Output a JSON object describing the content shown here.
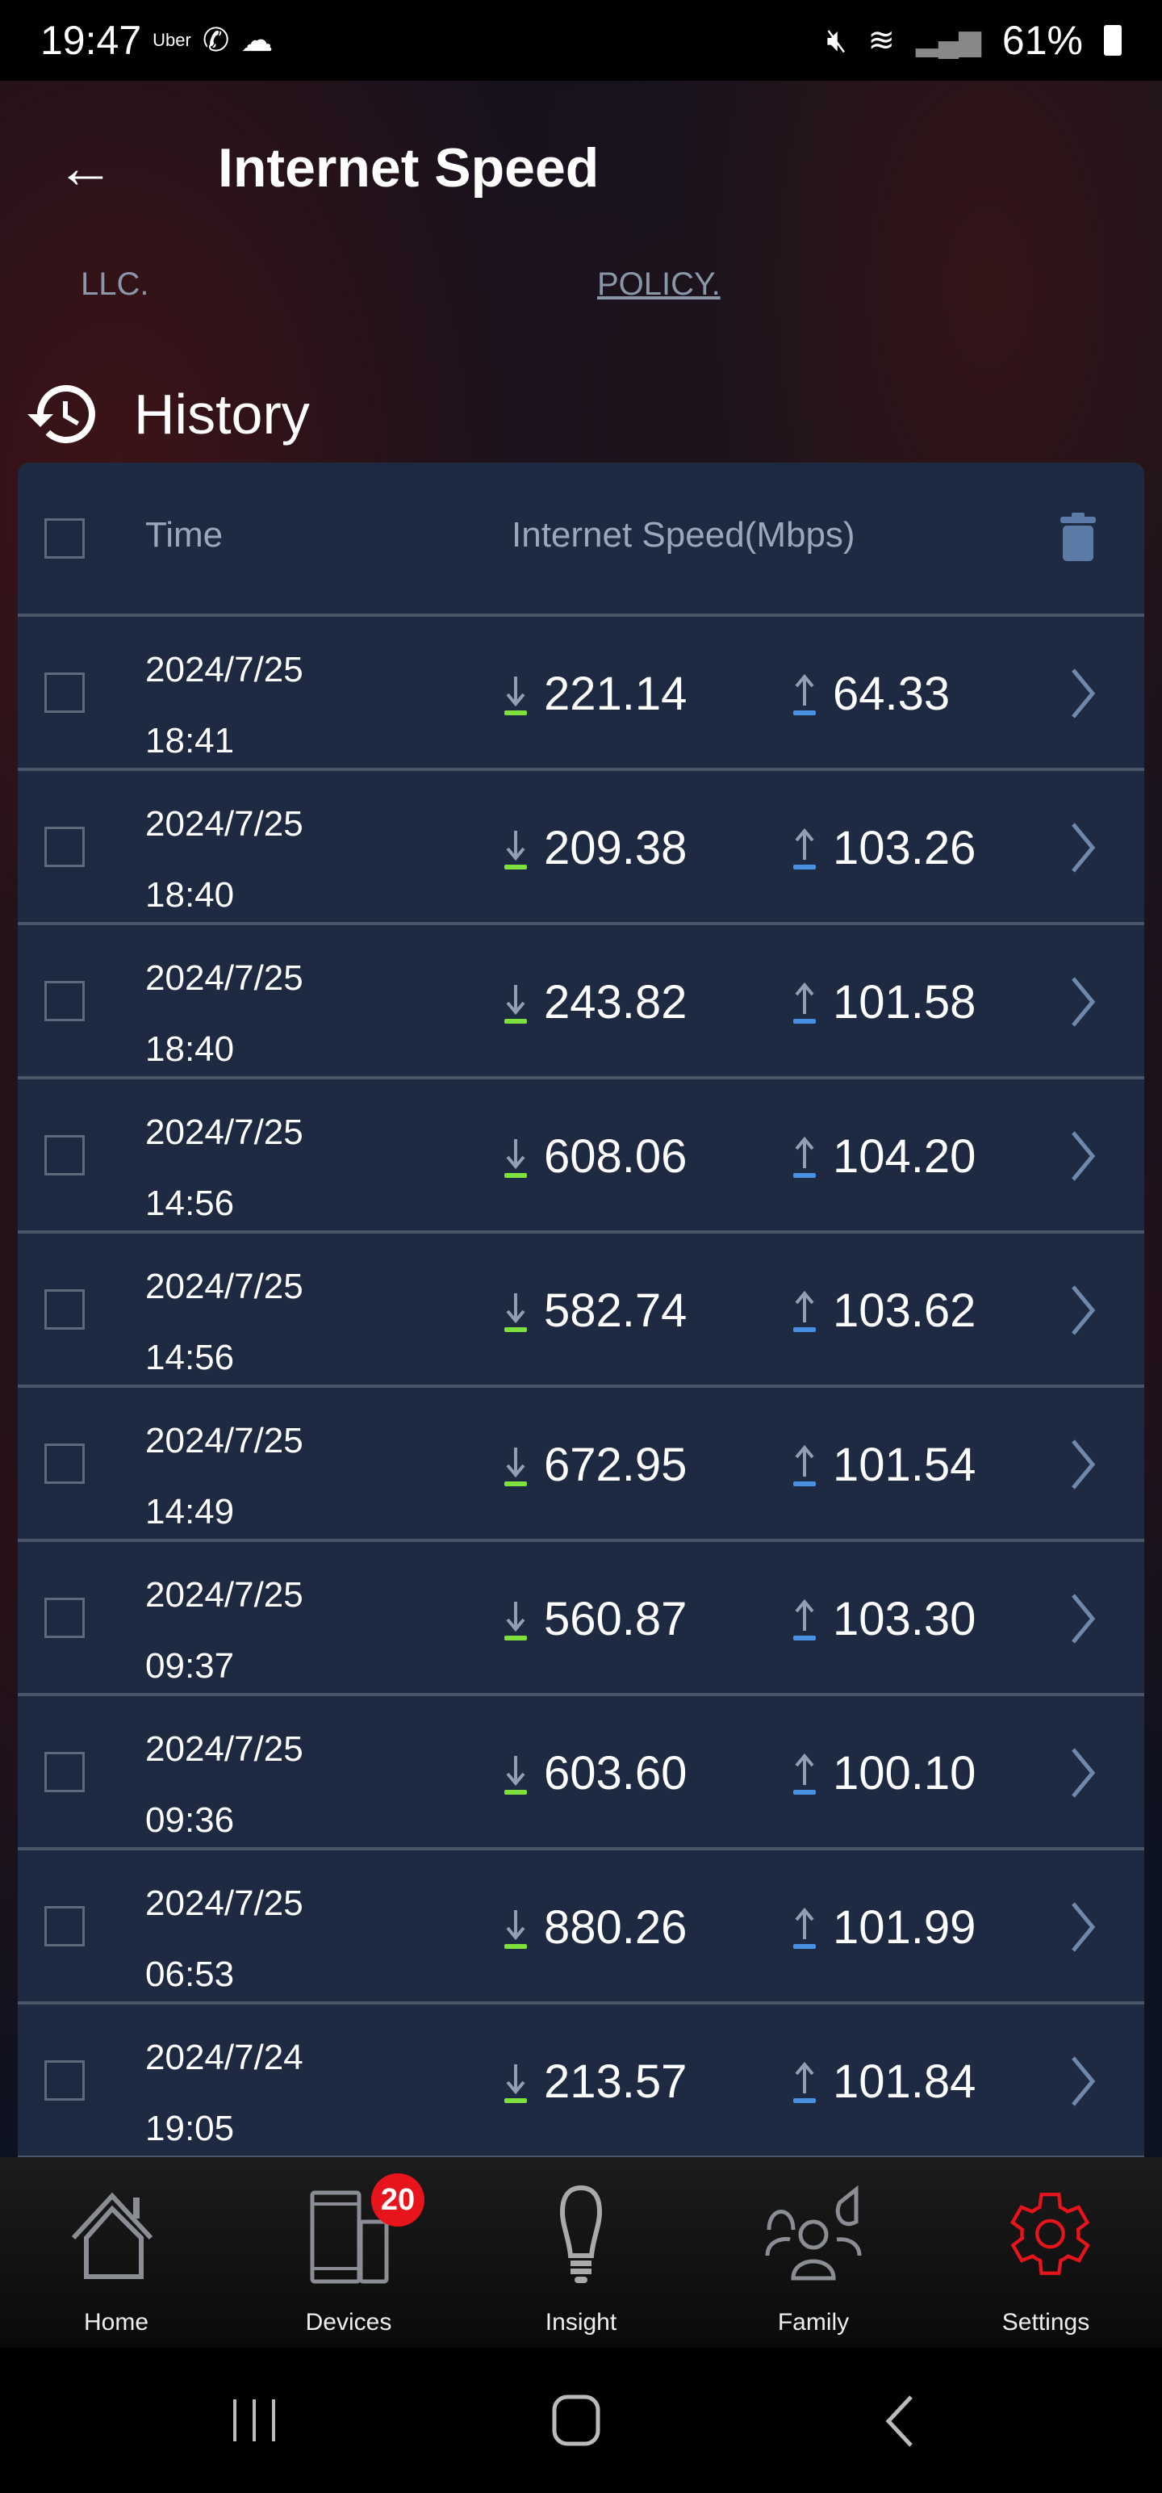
{
  "status_bar": {
    "time": "19:47",
    "notif_app": "Uber",
    "battery": "61%"
  },
  "header": {
    "title": "Internet Speed",
    "link_left": "LLC.",
    "link_right": "POLICY."
  },
  "history": {
    "title": "History",
    "col_time": "Time",
    "col_speed": "Internet Speed(Mbps)",
    "rows": [
      {
        "date": "2024/7/25",
        "time": "18:41",
        "download": "221.14",
        "upload": "64.33"
      },
      {
        "date": "2024/7/25",
        "time": "18:40",
        "download": "209.38",
        "upload": "103.26"
      },
      {
        "date": "2024/7/25",
        "time": "18:40",
        "download": "243.82",
        "upload": "101.58"
      },
      {
        "date": "2024/7/25",
        "time": "14:56",
        "download": "608.06",
        "upload": "104.20"
      },
      {
        "date": "2024/7/25",
        "time": "14:56",
        "download": "582.74",
        "upload": "103.62"
      },
      {
        "date": "2024/7/25",
        "time": "14:49",
        "download": "672.95",
        "upload": "101.54"
      },
      {
        "date": "2024/7/25",
        "time": "09:37",
        "download": "560.87",
        "upload": "103.30"
      },
      {
        "date": "2024/7/25",
        "time": "09:36",
        "download": "603.60",
        "upload": "100.10"
      },
      {
        "date": "2024/7/25",
        "time": "06:53",
        "download": "880.26",
        "upload": "101.99"
      },
      {
        "date": "2024/7/24",
        "time": "19:05",
        "download": "213.57",
        "upload": "101.84"
      }
    ]
  },
  "nav": {
    "items": [
      {
        "label": "Home"
      },
      {
        "label": "Devices",
        "badge": "20"
      },
      {
        "label": "Insight"
      },
      {
        "label": "Family"
      },
      {
        "label": "Settings",
        "active": true
      }
    ]
  },
  "colors": {
    "download": "#7ee03c",
    "upload": "#4a90e2",
    "active": "#e8141c",
    "card": "#1e2a42"
  }
}
